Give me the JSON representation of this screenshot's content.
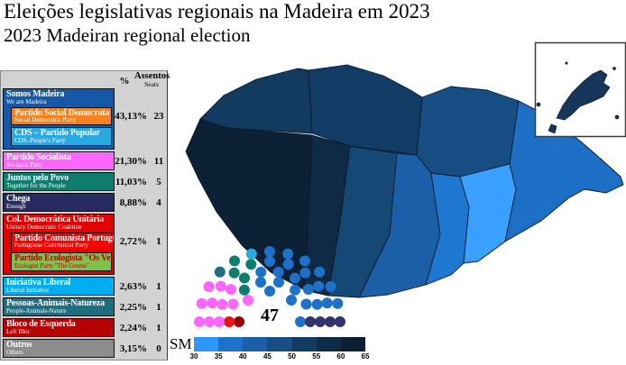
{
  "title": "Eleições legislativas regionais na Madeira em 2023",
  "subtitle": "2023 Madeiran regional election",
  "table": {
    "header_pct": "%",
    "header_seats_pt": "Assentos",
    "header_seats_en": "Seats",
    "rows": [
      {
        "name_pt": "Somos Madeira",
        "name_en": "We are Madeira",
        "color": "#1558A7",
        "pct": "43,13%",
        "seats": "23",
        "subs": [
          {
            "name_pt": "Partido Social Democrata",
            "name_en": "Social Democratic Party",
            "color": "#F5821F"
          },
          {
            "name_pt": "CDS – Partido Popular",
            "name_en": "CDS–People's Party",
            "color": "#2AA8E0"
          }
        ]
      },
      {
        "name_pt": "Partido Socialista",
        "name_en": "Socialist Party",
        "color": "#FF66FF",
        "pct": "21,30%",
        "seats": "11"
      },
      {
        "name_pt": "Juntos pelo Povo",
        "name_en": "Together for the People",
        "color": "#0E7D6E",
        "pct": "11,03%",
        "seats": "5"
      },
      {
        "name_pt": "Chega",
        "name_en": "Enough",
        "color": "#262C62",
        "pct": "8,88%",
        "seats": "4"
      },
      {
        "name_pt": "Col. Democrática Unitária",
        "name_en": "Unitary Democratic Coalition",
        "color": "#E00000",
        "pct": "2,72%",
        "seats": "1",
        "subs": [
          {
            "name_pt": "Partido Comunista Português",
            "name_en": "Portuguese Communist Party",
            "color": "#FF0000"
          },
          {
            "name_pt": "Partido Ecologista \"Os Verdes\"",
            "name_en": "Ecologist Party \"The Greens\"",
            "color": "#7DC24B",
            "text_color": "#B30000"
          }
        ]
      },
      {
        "name_pt": "Iniciativa Liberal",
        "name_en": "Liberal Initiative",
        "color": "#00ADEF",
        "pct": "2,63%",
        "seats": "1"
      },
      {
        "name_pt": "Pessoas-Animais-Natureza",
        "name_en": "People-Animals-Nature",
        "color": "#1D6E80",
        "pct": "2,25%",
        "seats": "1"
      },
      {
        "name_pt": "Bloco de Esquerda",
        "name_en": "Left Bloc",
        "color": "#B40000",
        "pct": "2,24%",
        "seats": "1"
      },
      {
        "name_pt": "Outros",
        "name_en": "Others",
        "color": "#8C8C8C",
        "pct": "3,15%",
        "seats": "0"
      }
    ]
  },
  "parliament": {
    "total": "47",
    "groups": [
      {
        "name": "Bloco de Esquerda",
        "color": "#990000",
        "seats": 1
      },
      {
        "name": "Col. Democrática Unitária",
        "color": "#EE1111",
        "seats": 1
      },
      {
        "name": "Partido Socialista",
        "color": "#FF66FF",
        "seats": 11
      },
      {
        "name": "Pessoas-Animais-Natureza",
        "color": "#1D6E80",
        "seats": 1
      },
      {
        "name": "Juntos pelo Povo",
        "color": "#0E7D6E",
        "seats": 5
      },
      {
        "name": "Iniciativa Liberal",
        "color": "#29ABE2",
        "seats": 1
      },
      {
        "name": "Somos Madeira (PSD/CDS)",
        "color": "#1D71C9",
        "seats": 23
      },
      {
        "name": "Chega",
        "color": "#33336E",
        "seats": 4
      }
    ]
  },
  "map": {
    "regions": {
      "calheta": "#0C2136",
      "porto_moniz": "#133A5F",
      "sao_vicente": "#123C66",
      "ponta_do_sol": "#0E2A45",
      "ribeira_brava": "#164875",
      "camara_de_lobos": "#1A5FA8",
      "funchal": "#1E78D2",
      "santa_cruz": "#39A0FF",
      "santana": "#174E84",
      "machico": "#1C6FC4",
      "porto_santo": "#16365C"
    }
  },
  "scale": {
    "label": "SM",
    "ticks": [
      "30",
      "35",
      "40",
      "45",
      "50",
      "55",
      "60",
      "65"
    ],
    "colors": [
      "#2E97FF",
      "#1C71C9",
      "#1A5FA8",
      "#174E84",
      "#133A5F",
      "#0F2B47",
      "#0C1F33"
    ]
  },
  "chart_data": {
    "type": "table",
    "title": "Eleições legislativas regionais na Madeira em 2023",
    "subtitle": "2023 Madeiran regional election",
    "total_seats": 47,
    "parties": [
      {
        "name_pt": "Somos Madeira (PSD + CDS-PP)",
        "name_en": "We are Madeira",
        "pct": 43.13,
        "seats": 23
      },
      {
        "name_pt": "Partido Socialista",
        "name_en": "Socialist Party",
        "pct": 21.3,
        "seats": 11
      },
      {
        "name_pt": "Juntos pelo Povo",
        "name_en": "Together for the People",
        "pct": 11.03,
        "seats": 5
      },
      {
        "name_pt": "Chega",
        "name_en": "Enough",
        "pct": 8.88,
        "seats": 4
      },
      {
        "name_pt": "Col. Democrática Unitária (PCP + PEV)",
        "name_en": "Unitary Democratic Coalition",
        "pct": 2.72,
        "seats": 1
      },
      {
        "name_pt": "Iniciativa Liberal",
        "name_en": "Liberal Initiative",
        "pct": 2.63,
        "seats": 1
      },
      {
        "name_pt": "Pessoas-Animais-Natureza",
        "name_en": "People-Animals-Nature",
        "pct": 2.25,
        "seats": 1
      },
      {
        "name_pt": "Bloco de Esquerda",
        "name_en": "Left Bloc",
        "pct": 2.24,
        "seats": 1
      },
      {
        "name_pt": "Outros",
        "name_en": "Others",
        "pct": 3.15,
        "seats": 0
      }
    ],
    "choropleth_scale": {
      "label": "SM",
      "min": 30,
      "max": 65,
      "step": 5,
      "ticks": [
        30,
        35,
        40,
        45,
        50,
        55,
        60,
        65
      ]
    }
  }
}
